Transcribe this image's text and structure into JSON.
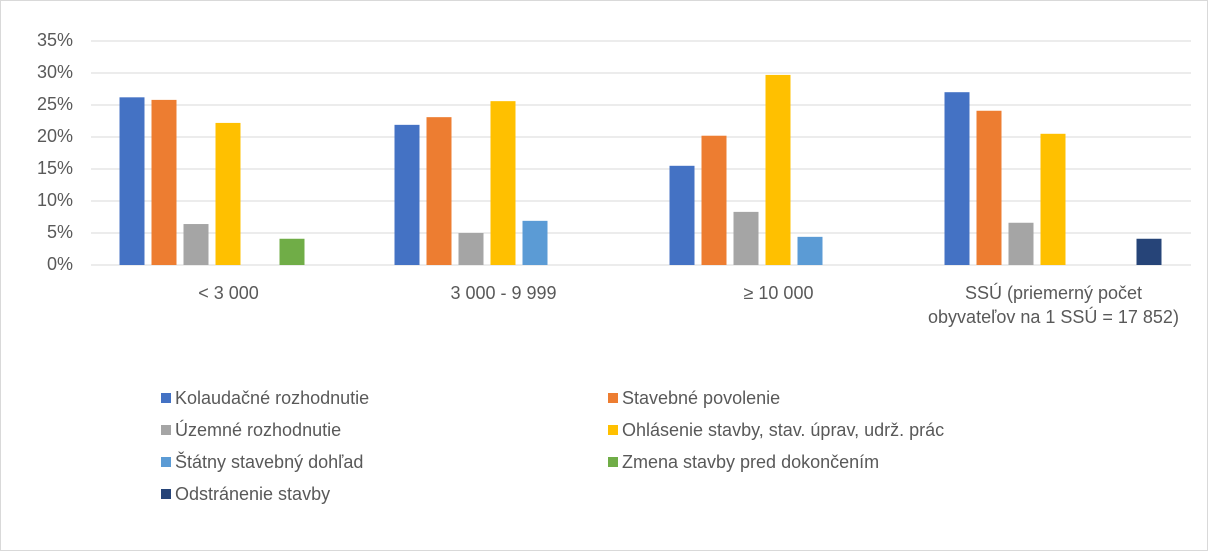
{
  "chart_data": {
    "type": "bar",
    "categories": [
      "< 3 000",
      "3 000 - 9 999",
      "≥ 10 000",
      "SSÚ (priemerný počet obyvateľov na 1 SSÚ = 17 852)"
    ],
    "series": [
      {
        "name": "Kolaudačné rozhodnutie",
        "color": "#4472c4",
        "values": [
          26.2,
          21.9,
          15.5,
          27.0
        ]
      },
      {
        "name": "Stavebné povolenie",
        "color": "#ed7d31",
        "values": [
          25.8,
          23.1,
          20.2,
          24.1
        ]
      },
      {
        "name": "Územné rozhodnutie",
        "color": "#a5a5a5",
        "values": [
          6.4,
          5.0,
          8.3,
          6.6
        ]
      },
      {
        "name": "Ohlásenie stavby, stav. úprav, udrž. prác",
        "color": "#ffc000",
        "values": [
          22.2,
          25.6,
          29.7,
          20.5
        ]
      },
      {
        "name": "Štátny stavebný dohľad",
        "color": "#5b9bd5",
        "values": [
          null,
          6.9,
          4.4,
          null
        ]
      },
      {
        "name": "Zmena stavby pred dokončením",
        "color": "#70ad47",
        "values": [
          4.1,
          null,
          null,
          null
        ]
      },
      {
        "name": "Odstránenie stavby",
        "color": "#264478",
        "values": [
          null,
          null,
          null,
          4.1
        ]
      }
    ],
    "ylim": [
      0,
      35
    ],
    "yticks": [
      {
        "value": 0,
        "label": "0%"
      },
      {
        "value": 5,
        "label": "5%"
      },
      {
        "value": 10,
        "label": "10%"
      },
      {
        "value": 15,
        "label": "15%"
      },
      {
        "value": 20,
        "label": "20%"
      },
      {
        "value": 25,
        "label": "25%"
      },
      {
        "value": 30,
        "label": "30%"
      },
      {
        "value": 35,
        "label": "35%"
      }
    ],
    "grid": true,
    "legend": "bottom"
  }
}
